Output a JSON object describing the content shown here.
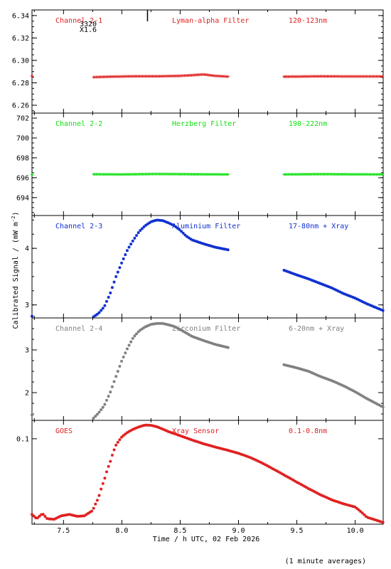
{
  "chart_data": {
    "type": "scatter",
    "xlabel": "Time / h UTC, 02 Feb 2026",
    "ylabel": "Calibrated Signal / (mW m",
    "ylabel_sup": "-2",
    "ylabel_close": ")",
    "footnote": "(1 minute averages)",
    "xlim": [
      7.23,
      10.24
    ],
    "xticks": [
      7.5,
      8.0,
      8.5,
      9.0,
      9.5,
      10.0
    ],
    "xtick_labels": [
      "7.5",
      "8.0",
      "8.5",
      "9.0",
      "9.5",
      "10.0"
    ],
    "annotation": {
      "lines": [
        "3320",
        "X1.6"
      ],
      "x": 8.22
    },
    "panels": [
      {
        "name": "Channel 2-1",
        "filter": "Lyman-alpha Filter",
        "band": "120-123nm",
        "color": "#e02020",
        "marker": "plus",
        "scale": "linear",
        "ylim": [
          6.253,
          6.345
        ],
        "yticks": [
          6.26,
          6.28,
          6.3,
          6.32,
          6.34
        ],
        "ytick_labels": [
          "6.26",
          "6.28",
          "6.30",
          "6.32",
          "6.34"
        ],
        "series": [
          {
            "x": [
              7.23,
              7.75,
              7.9,
              8.1,
              8.3,
              8.5,
              8.6,
              8.7,
              8.8,
              8.92,
              9.38,
              9.5,
              9.7,
              9.9,
              10.1,
              10.24
            ],
            "y": [
              6.286,
              6.285,
              6.2855,
              6.2858,
              6.2858,
              6.2862,
              6.2868,
              6.2875,
              6.2862,
              6.2855,
              6.2855,
              6.2856,
              6.2858,
              6.2857,
              6.2857,
              6.2857
            ],
            "gaps": [
              [
                7.24,
                7.75
              ],
              [
                8.92,
                9.38
              ]
            ]
          }
        ]
      },
      {
        "name": "Channel 2-2",
        "filter": "Herzberg Filter",
        "band": "190-222nm",
        "color": "#10e010",
        "marker": "plus",
        "scale": "linear",
        "ylim": [
          692.2,
          702.5
        ],
        "yticks": [
          694,
          696,
          698,
          700,
          702
        ],
        "ytick_labels": [
          "694",
          "696",
          "698",
          "700",
          "702"
        ],
        "series": [
          {
            "x": [
              7.23,
              7.75,
              8.0,
              8.3,
              8.6,
              8.92,
              9.38,
              9.7,
              10.0,
              10.24
            ],
            "y": [
              696.3,
              696.35,
              696.33,
              696.38,
              696.35,
              696.33,
              696.33,
              696.36,
              696.34,
              696.33
            ],
            "gaps": [
              [
                7.24,
                7.75
              ],
              [
                8.92,
                9.38
              ]
            ]
          }
        ]
      },
      {
        "name": "Channel 2-3",
        "filter": "Aluminium Filter",
        "band": "17-80nm + Xray",
        "color": "#1030d0",
        "marker": "star",
        "scale": "linear",
        "ylim": [
          2.77,
          4.58
        ],
        "yticks": [
          3,
          4
        ],
        "ytick_labels": [
          "3",
          "4"
        ],
        "series": [
          {
            "x": [
              7.23,
              7.75,
              7.8,
              7.85,
              7.9,
              7.95,
              8.0,
              8.05,
              8.1,
              8.15,
              8.2,
              8.25,
              8.3,
              8.35,
              8.4,
              8.45,
              8.5,
              8.55,
              8.6,
              8.7,
              8.8,
              8.92,
              9.38,
              9.5,
              9.6,
              9.7,
              9.8,
              9.9,
              10.0,
              10.1,
              10.24
            ],
            "y": [
              2.8,
              2.78,
              2.85,
              2.97,
              3.2,
              3.5,
              3.75,
              3.98,
              4.15,
              4.3,
              4.4,
              4.47,
              4.5,
              4.49,
              4.45,
              4.4,
              4.32,
              4.22,
              4.15,
              4.08,
              4.02,
              3.97,
              3.62,
              3.53,
              3.46,
              3.38,
              3.3,
              3.2,
              3.12,
              3.02,
              2.9
            ],
            "gaps": [
              [
                7.24,
                7.75
              ],
              [
                8.92,
                9.38
              ]
            ]
          }
        ]
      },
      {
        "name": "Channel 2-4",
        "filter": "Zirconium Filter",
        "band": "6-20nm + Xray",
        "color": "#808080",
        "marker": "star",
        "scale": "linear",
        "ylim": [
          1.35,
          3.75
        ],
        "yticks": [
          2,
          3
        ],
        "ytick_labels": [
          "2",
          "3"
        ],
        "series": [
          {
            "x": [
              7.23,
              7.75,
              7.8,
              7.85,
              7.9,
              7.95,
              8.0,
              8.05,
              8.1,
              8.15,
              8.2,
              8.25,
              8.3,
              8.35,
              8.4,
              8.45,
              8.5,
              8.55,
              8.6,
              8.7,
              8.8,
              8.92,
              9.38,
              9.5,
              9.6,
              9.7,
              9.8,
              9.9,
              10.0,
              10.1,
              10.24
            ],
            "y": [
              1.48,
              1.38,
              1.52,
              1.7,
              2.0,
              2.38,
              2.75,
              3.05,
              3.3,
              3.45,
              3.54,
              3.6,
              3.62,
              3.62,
              3.59,
              3.55,
              3.48,
              3.4,
              3.32,
              3.22,
              3.13,
              3.05,
              2.66,
              2.58,
              2.5,
              2.38,
              2.28,
              2.16,
              2.02,
              1.86,
              1.66
            ],
            "gaps": [
              [
                7.24,
                7.75
              ],
              [
                8.92,
                9.38
              ]
            ]
          }
        ]
      },
      {
        "name": "GOES",
        "filter": "Xray Sensor",
        "band": "0.1-0.8nm",
        "color": "#e02020",
        "marker": "star",
        "scale": "log",
        "ylim": [
          0.0113,
          0.16
        ],
        "yticks": [
          0.1
        ],
        "ytick_labels": [
          "0.1"
        ],
        "series": [
          {
            "x": [
              7.23,
              7.27,
              7.32,
              7.36,
              7.42,
              7.48,
              7.55,
              7.62,
              7.68,
              7.75,
              7.8,
              7.85,
              7.9,
              7.95,
              8.0,
              8.05,
              8.1,
              8.15,
              8.2,
              8.25,
              8.3,
              8.35,
              8.4,
              8.5,
              8.6,
              8.7,
              8.8,
              8.9,
              9.0,
              9.1,
              9.2,
              9.3,
              9.4,
              9.5,
              9.6,
              9.7,
              9.8,
              9.9,
              10.0,
              10.1,
              10.24
            ],
            "y": [
              0.0145,
              0.013,
              0.0148,
              0.013,
              0.0128,
              0.014,
              0.0145,
              0.0138,
              0.014,
              0.016,
              0.022,
              0.035,
              0.055,
              0.085,
              0.105,
              0.118,
              0.128,
              0.136,
              0.142,
              0.141,
              0.136,
              0.128,
              0.12,
              0.108,
              0.097,
              0.088,
              0.081,
              0.075,
              0.069,
              0.062,
              0.054,
              0.046,
              0.039,
              0.033,
              0.028,
              0.024,
              0.021,
              0.019,
              0.0175,
              0.0135,
              0.0118
            ],
            "gaps": []
          }
        ]
      }
    ]
  }
}
